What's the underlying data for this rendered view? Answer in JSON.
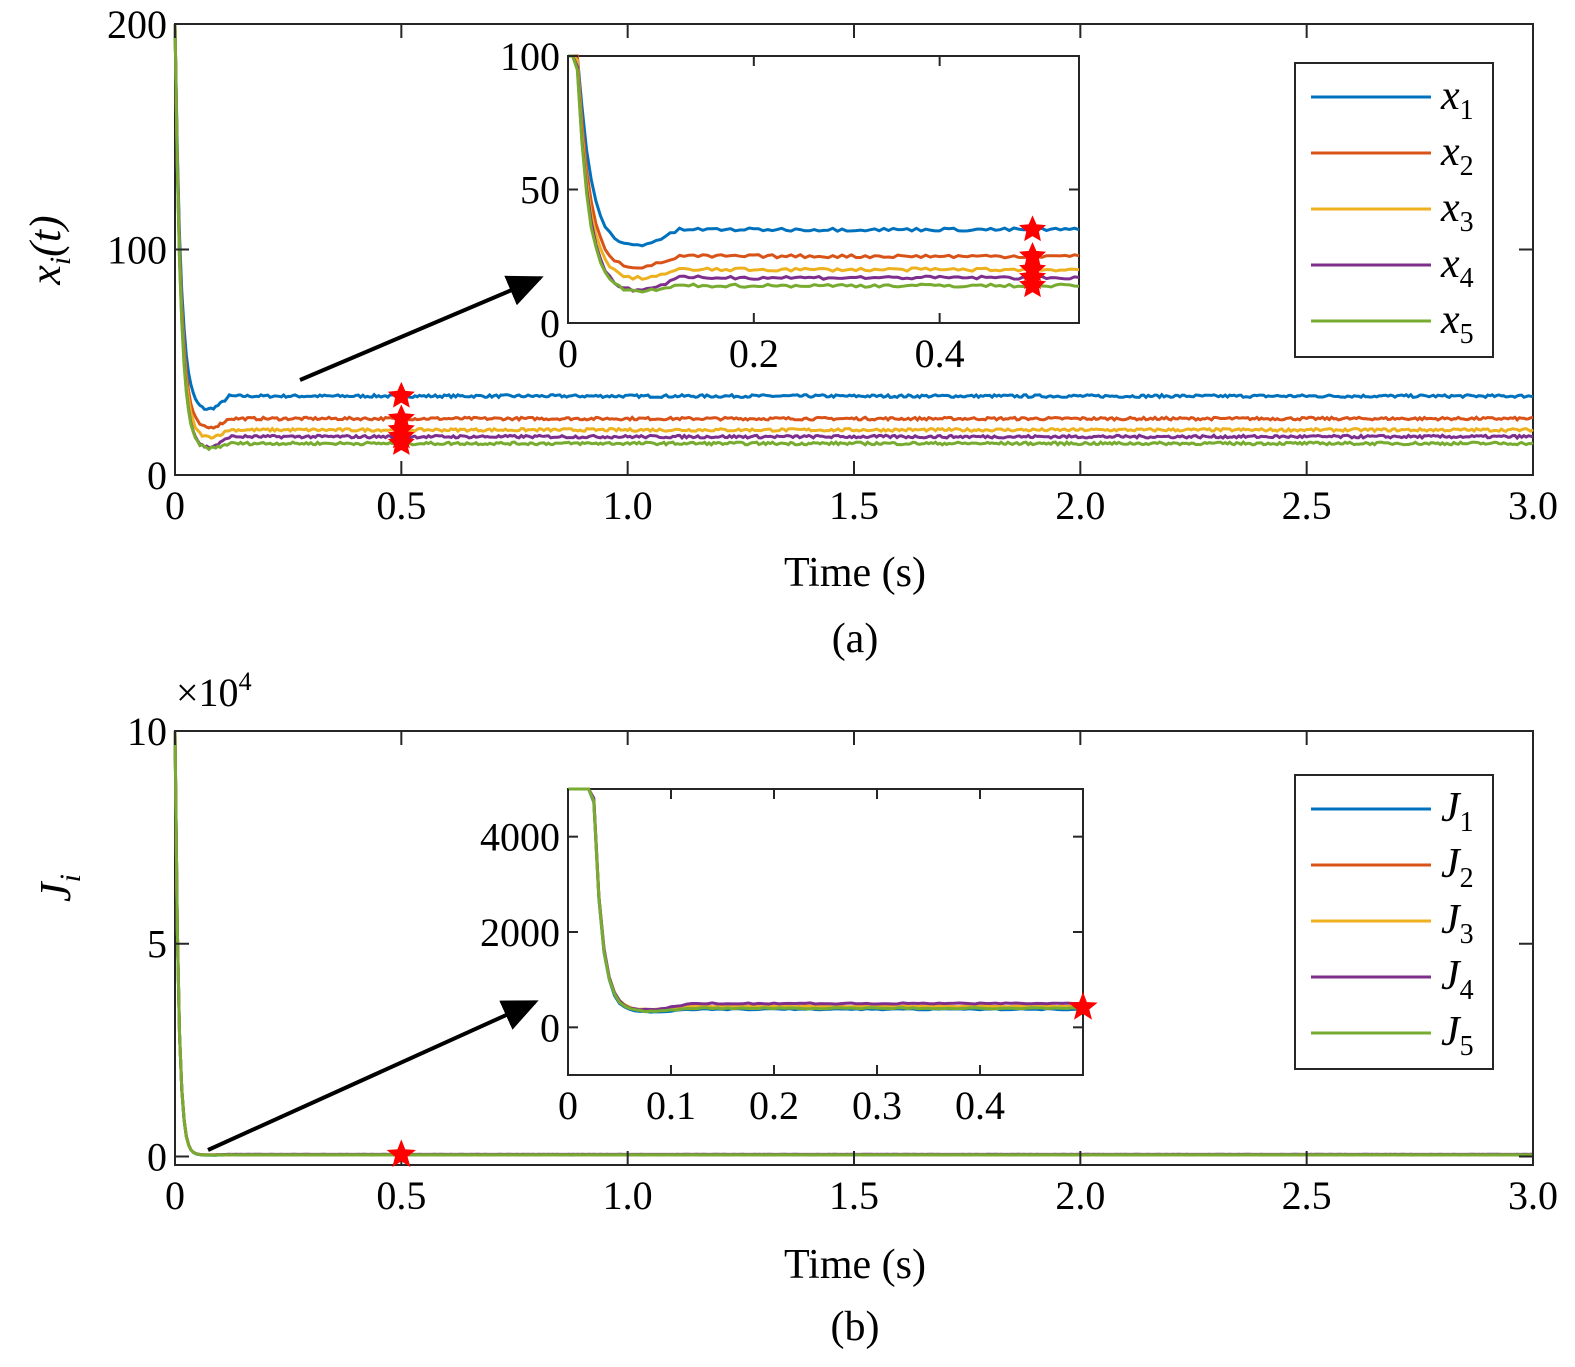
{
  "chart_data": [
    {
      "type": "line",
      "panel_label": "(a)",
      "xlabel": "Time (s)",
      "ylabel": {
        "main": "x",
        "sub": "i",
        "suffix": "(t)"
      },
      "xlim": [
        0,
        3
      ],
      "ylim": [
        0,
        200
      ],
      "xticks": [
        "0",
        "0.5",
        "1.0",
        "1.5",
        "2.0",
        "2.5",
        "3.0"
      ],
      "yticks": [
        "0",
        "100",
        "200"
      ],
      "legend_position": "top-right",
      "series": [
        {
          "name": "x",
          "sub": "1",
          "color": "#0072BD",
          "initial": 200,
          "final": 35,
          "values_at_markers": [
            35
          ]
        },
        {
          "name": "x",
          "sub": "2",
          "color": "#D95319",
          "initial": 200,
          "final": 25,
          "values_at_markers": [
            25
          ]
        },
        {
          "name": "x",
          "sub": "3",
          "color": "#EDB120",
          "initial": 200,
          "final": 20,
          "values_at_markers": [
            20
          ]
        },
        {
          "name": "x",
          "sub": "4",
          "color": "#7E2F8E",
          "initial": 200,
          "final": 17,
          "values_at_markers": [
            17
          ]
        },
        {
          "name": "x",
          "sub": "5",
          "color": "#77AC30",
          "initial": 200,
          "final": 14,
          "values_at_markers": [
            14
          ]
        }
      ],
      "markers": {
        "x": 0.5,
        "values": [
          35,
          25,
          20,
          17,
          14
        ],
        "color": "#FF0000"
      },
      "inset": {
        "xlim": [
          0,
          0.55
        ],
        "ylim": [
          0,
          100
        ],
        "xticks": [
          "0",
          "0.2",
          "0.4"
        ],
        "yticks": [
          "0",
          "50",
          "100"
        ],
        "marker_x": 0.5
      }
    },
    {
      "type": "line",
      "panel_label": "(b)",
      "xlabel": "Time (s)",
      "ylabel": {
        "main": "J",
        "sub": "i",
        "suffix": ""
      },
      "exponent_label": "×10",
      "exponent": "4",
      "xlim": [
        0,
        3
      ],
      "ylim": [
        0,
        10
      ],
      "xticks": [
        "0",
        "0.5",
        "1.0",
        "1.5",
        "2.0",
        "2.5",
        "3.0"
      ],
      "yticks": [
        "0",
        "5",
        "10"
      ],
      "legend_position": "top-right",
      "series": [
        {
          "name": "J",
          "sub": "1",
          "color": "#0072BD",
          "initial": 100000,
          "final": 380
        },
        {
          "name": "J",
          "sub": "2",
          "color": "#D95319",
          "initial": 100000,
          "final": 430
        },
        {
          "name": "J",
          "sub": "3",
          "color": "#EDB120",
          "initial": 100000,
          "final": 440
        },
        {
          "name": "J",
          "sub": "4",
          "color": "#7E2F8E",
          "initial": 100000,
          "final": 500
        },
        {
          "name": "J",
          "sub": "5",
          "color": "#77AC30",
          "initial": 100000,
          "final": 400
        }
      ],
      "markers": {
        "x": 0.5,
        "values": [
          420
        ],
        "color": "#FF0000"
      },
      "inset": {
        "xlim": [
          0,
          0.5
        ],
        "ylim": [
          -1000,
          5000
        ],
        "xticks": [
          "0",
          "0.1",
          "0.2",
          "0.3",
          "0.4"
        ],
        "yticks": [
          "0",
          "2000",
          "4000"
        ],
        "marker_x": 0.5
      }
    }
  ]
}
